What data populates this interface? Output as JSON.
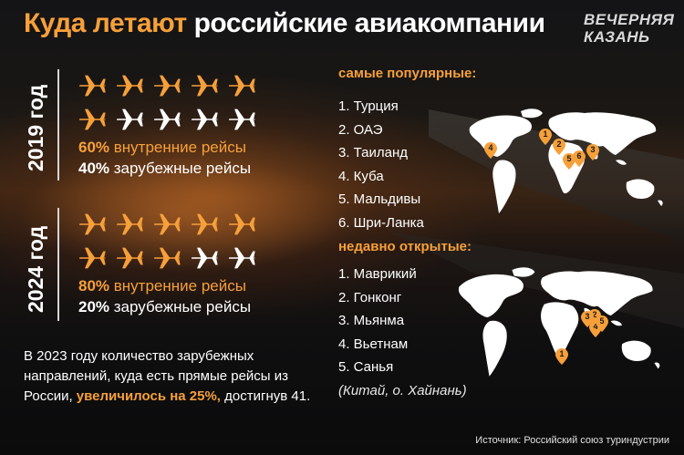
{
  "title": {
    "part1": "Куда летают",
    "part2": "российские авиакомпании"
  },
  "logo": {
    "line1": "ВЕЧЕРНЯЯ",
    "line2": "КАЗАНЬ"
  },
  "periods": [
    {
      "year": "2019 год",
      "domestic_share": 60,
      "domestic_pct": "60%",
      "domestic_label": "внутренние рейсы",
      "foreign_pct": "40%",
      "foreign_label": "зарубежные рейсы",
      "planes_total": 10,
      "planes_domestic": 6
    },
    {
      "year": "2024 год",
      "domestic_share": 80,
      "domestic_pct": "80%",
      "domestic_label": "внутренние рейсы",
      "foreign_pct": "20%",
      "foreign_label": "зарубежные рейсы",
      "planes_total": 10,
      "planes_domestic": 8
    }
  ],
  "note": {
    "part1": "В 2023 году количество зарубежных направлений, куда есть прямые рейсы из России,",
    "highlight": "увеличилось на 25%,",
    "part2": "достигнув 41."
  },
  "popular": {
    "heading": "самые популярные:",
    "items": [
      "1. Турция",
      "2. ОАЭ",
      "3. Таиланд",
      "4. Куба",
      "5. Мальдивы",
      "6. Шри-Ланка"
    ],
    "pins": [
      "1",
      "2",
      "3",
      "4",
      "5",
      "6"
    ]
  },
  "recent": {
    "heading": "недавно открытые:",
    "items": [
      "1. Маврикий",
      "2. Гонконг",
      "3. Мьянма",
      "4. Вьетнам",
      "5. Санья"
    ],
    "sub": "(Китай, о. Хайнань)",
    "pins": [
      "1",
      "2",
      "3",
      "4",
      "5"
    ]
  },
  "source": "Источник: Российский союз туриндустрии",
  "colors": {
    "accent": "#f7a03a",
    "text": "#ffffff",
    "plane_white": "#ffffff",
    "plane_orange": "#f7a03a"
  },
  "icons": {
    "plane": "airplane-icon",
    "pin": "map-pin-icon",
    "map": "world-map-icon"
  }
}
